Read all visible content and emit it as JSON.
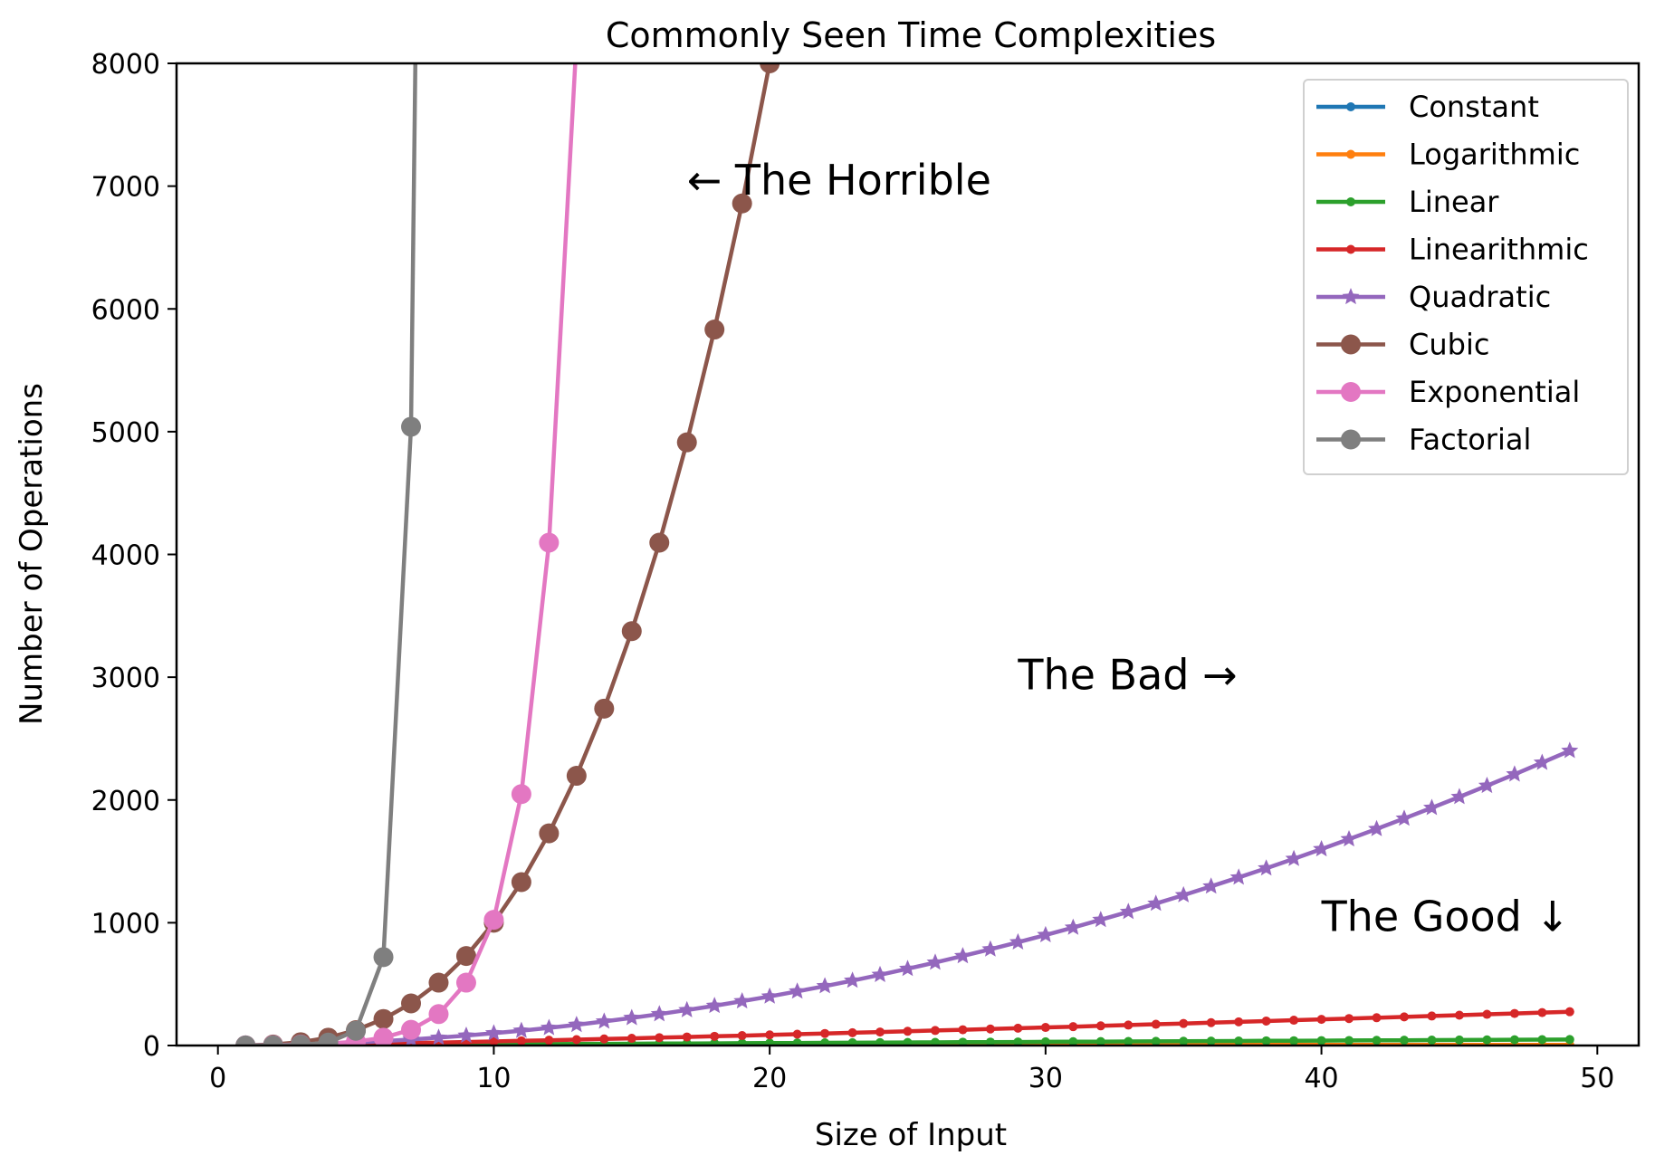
{
  "chart_data": {
    "type": "line",
    "title": "Commonly Seen Time Complexities",
    "xlabel": "Size of Input",
    "ylabel": "Number of Operations",
    "xlim": [
      -1.5,
      51.5
    ],
    "ylim": [
      0,
      8000
    ],
    "xticks": [
      0,
      10,
      20,
      30,
      40,
      50
    ],
    "yticks": [
      0,
      1000,
      2000,
      3000,
      4000,
      5000,
      6000,
      7000,
      8000
    ],
    "grid": false,
    "legend_position": "top-right",
    "n_range": [
      1,
      49
    ],
    "series": [
      {
        "name": "Constant",
        "color": "#1f77b4",
        "marker": "small-dot",
        "formula": "1"
      },
      {
        "name": "Logarithmic",
        "color": "#ff7f0e",
        "marker": "small-dot",
        "formula": "log n"
      },
      {
        "name": "Linear",
        "color": "#2ca02c",
        "marker": "small-dot",
        "formula": "n"
      },
      {
        "name": "Linearithmic",
        "color": "#d62728",
        "marker": "small-dot",
        "formula": "n log n"
      },
      {
        "name": "Quadratic",
        "color": "#9467bd",
        "marker": "star",
        "formula": "n^2"
      },
      {
        "name": "Cubic",
        "color": "#8c564b",
        "marker": "large-dot",
        "formula": "n^3"
      },
      {
        "name": "Exponential",
        "color": "#e377c2",
        "marker": "large-dot",
        "formula": "2^n"
      },
      {
        "name": "Factorial",
        "color": "#7f7f7f",
        "marker": "large-dot",
        "formula": "n!"
      }
    ],
    "annotations": [
      {
        "text": "← The Horrible",
        "x": 17,
        "y": 7050
      },
      {
        "text": "The Bad →",
        "x": 29,
        "y": 3020
      },
      {
        "text": "The Good ↓",
        "x": 40,
        "y": 1050
      }
    ]
  }
}
